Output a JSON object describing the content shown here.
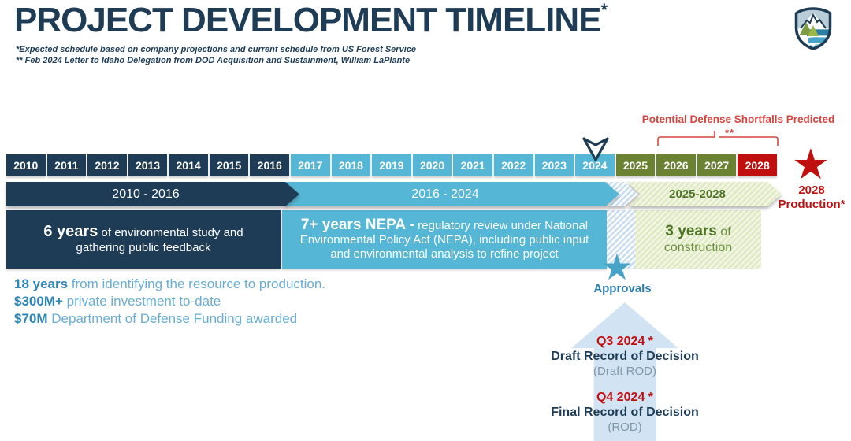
{
  "header": {
    "title": "PROJECT DEVELOPMENT TIMELINE",
    "title_asterisk": "*",
    "footnote1": "*Expected schedule based on company projections and current schedule from US Forest Service",
    "footnote2": "** Feb 2024 Letter to Idaho Delegation from DOD Acquisition and Sustainment, William LaPlante"
  },
  "timeline": {
    "years": [
      {
        "label": "2010",
        "phase": "study"
      },
      {
        "label": "2011",
        "phase": "study"
      },
      {
        "label": "2012",
        "phase": "study"
      },
      {
        "label": "2013",
        "phase": "study"
      },
      {
        "label": "2014",
        "phase": "study"
      },
      {
        "label": "2015",
        "phase": "study"
      },
      {
        "label": "2016",
        "phase": "study"
      },
      {
        "label": "2017",
        "phase": "nepa"
      },
      {
        "label": "2018",
        "phase": "nepa"
      },
      {
        "label": "2019",
        "phase": "nepa"
      },
      {
        "label": "2020",
        "phase": "nepa"
      },
      {
        "label": "2021",
        "phase": "nepa"
      },
      {
        "label": "2022",
        "phase": "nepa"
      },
      {
        "label": "2023",
        "phase": "nepa"
      },
      {
        "label": "2024",
        "phase": "nepa"
      },
      {
        "label": "2025",
        "phase": "construction"
      },
      {
        "label": "2026",
        "phase": "construction"
      },
      {
        "label": "2027",
        "phase": "construction"
      },
      {
        "label": "2028",
        "phase": "production"
      }
    ],
    "bars": {
      "study": "2010 - 2016",
      "nepa": "2016 - 2024",
      "construction": "2025-2028"
    }
  },
  "blocks": {
    "study": {
      "lead": "6 years",
      "text": " of environmental study and gathering public feedback"
    },
    "nepa": {
      "lead": "7+ years NEPA -",
      "text": " regulatory review under National Environmental Policy Act (NEPA), including public input and environmental analysis to refine project"
    },
    "construction": {
      "lead": "3 years",
      "text": " of construction"
    }
  },
  "shortfall": {
    "label": "Potential Defense Shortfalls Predicted",
    "asterisks": "**"
  },
  "production": {
    "star": "★",
    "line1": "2028",
    "line2": "Production*"
  },
  "approvals": {
    "star": "★",
    "label": "Approvals"
  },
  "stats": [
    {
      "lead": "18 years",
      "text": " from identifying the resource to production."
    },
    {
      "lead": "$300M+",
      "text": " private investment to-date"
    },
    {
      "lead": "$70M",
      "text": " Department of Defense Funding awarded"
    }
  ],
  "rod": {
    "q3": "Q3 2024 *",
    "draft": "Draft Record of Decision",
    "draft_sub": "(Draft ROD)",
    "q4": "Q4 2024 *",
    "final": "Final Record of Decision",
    "final_sub": "(ROD)"
  },
  "icons": {
    "logo": "mountain-shield-logo",
    "year_2024_marker": "chevron-down-marker",
    "production_star": "star",
    "approvals_star": "star"
  },
  "colors": {
    "navy": "#1e3c55",
    "blue": "#55b6d5",
    "olive": "#6b8233",
    "red": "#c00f0f",
    "coral": "#d4453f",
    "hatch-blue": "#c8ddf0",
    "hatch-green-a": "#dfeac3",
    "hatch-green-b": "#f2f6e4",
    "green-text": "#6e8f3f",
    "green-text-dark": "#4f7426",
    "stat-bold": "#2e86b8",
    "stat-text": "#68aed4",
    "approvals-blue": "#2c7cb0",
    "star-blue": "#47a4c8",
    "arrow-blue": "#d2e4f3",
    "rod-gray": "#7e96a9"
  }
}
